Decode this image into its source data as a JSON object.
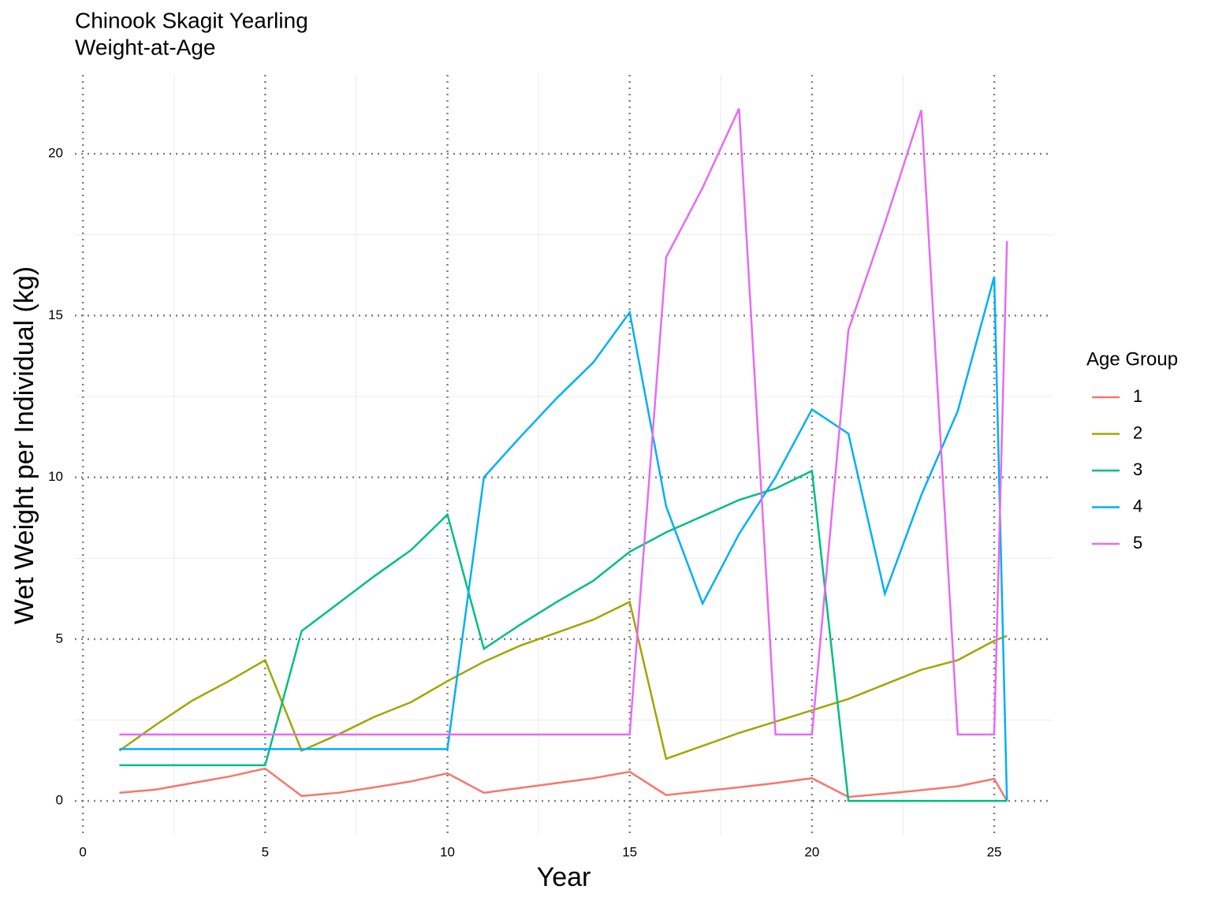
{
  "chart_data": {
    "type": "line",
    "title": [
      "Chinook Skagit Yearling",
      "Weight-at-Age"
    ],
    "x_label": "Year",
    "y_label": "Wet Weight per Individual (kg)",
    "legend_title": "Age Group",
    "legend_position": "right",
    "grid": true,
    "x": [
      1,
      2,
      3,
      4,
      5,
      6,
      7,
      8,
      9,
      10,
      11,
      12,
      13,
      14,
      15,
      16,
      17,
      18,
      19,
      20,
      21,
      22,
      23,
      24,
      25,
      25.35
    ],
    "series": [
      {
        "name": "1",
        "color": "#F8766D",
        "values": [
          0.25,
          0.35,
          0.55,
          0.75,
          1.0,
          0.15,
          0.25,
          0.42,
          0.6,
          0.85,
          0.25,
          0.4,
          0.55,
          0.7,
          0.9,
          0.18,
          0.3,
          0.42,
          0.55,
          0.7,
          0.12,
          0.22,
          0.33,
          0.45,
          0.68,
          0
        ]
      },
      {
        "name": "2",
        "color": "#A3A500",
        "values": [
          1.55,
          2.35,
          3.1,
          3.7,
          4.35,
          1.55,
          2.05,
          2.6,
          3.05,
          3.7,
          4.3,
          4.8,
          5.2,
          5.6,
          6.15,
          1.3,
          1.7,
          2.1,
          2.45,
          2.8,
          3.15,
          3.6,
          4.05,
          4.35,
          4.95,
          5.1
        ]
      },
      {
        "name": "3",
        "color": "#00BF7D",
        "values": [
          1.1,
          1.1,
          1.1,
          1.1,
          1.1,
          5.25,
          6.1,
          6.95,
          7.75,
          8.85,
          4.7,
          5.45,
          6.15,
          6.8,
          7.7,
          8.3,
          8.8,
          9.3,
          9.65,
          10.2,
          0,
          0,
          0,
          0,
          0,
          0
        ]
      },
      {
        "name": "4",
        "color": "#00B0F6",
        "values": [
          1.6,
          1.6,
          1.6,
          1.6,
          1.6,
          1.6,
          1.6,
          1.6,
          1.6,
          1.6,
          10.0,
          11.25,
          12.45,
          13.55,
          15.1,
          9.1,
          6.1,
          8.25,
          10.0,
          12.1,
          11.35,
          6.4,
          9.45,
          12.05,
          16.2,
          0
        ]
      },
      {
        "name": "5",
        "color": "#E76BF3",
        "values": [
          2.05,
          2.05,
          2.05,
          2.05,
          2.05,
          2.05,
          2.05,
          2.05,
          2.05,
          2.05,
          2.05,
          2.05,
          2.05,
          2.05,
          2.05,
          16.8,
          18.95,
          21.4,
          2.05,
          2.05,
          14.55,
          17.85,
          21.35,
          2.05,
          2.05,
          17.3
        ]
      }
    ],
    "xlim": [
      -0.22,
      26.6
    ],
    "xticks": [
      0,
      5,
      10,
      15,
      20,
      25
    ],
    "ylim": [
      -1.07,
      22.44
    ],
    "yticks": [
      0,
      5,
      10,
      15,
      20
    ]
  }
}
